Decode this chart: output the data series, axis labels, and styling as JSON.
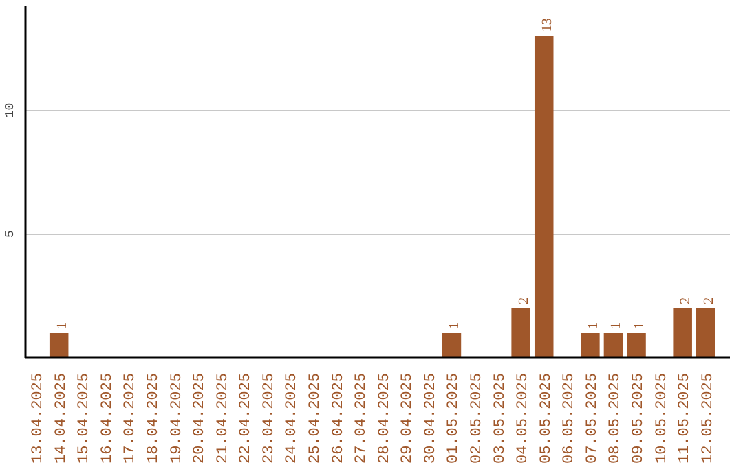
{
  "chart_data": {
    "type": "bar",
    "categories": [
      "13.04.2025",
      "14.04.2025",
      "15.04.2025",
      "16.04.2025",
      "17.04.2025",
      "18.04.2025",
      "19.04.2025",
      "20.04.2025",
      "21.04.2025",
      "22.04.2025",
      "23.04.2025",
      "24.04.2025",
      "25.04.2025",
      "26.04.2025",
      "27.04.2025",
      "28.04.2025",
      "29.04.2025",
      "30.04.2025",
      "01.05.2025",
      "02.05.2025",
      "03.05.2025",
      "04.05.2025",
      "05.05.2025",
      "06.05.2025",
      "07.05.2025",
      "08.05.2025",
      "09.05.2025",
      "10.05.2025",
      "11.05.2025",
      "12.05.2025"
    ],
    "values": [
      0,
      1,
      0,
      0,
      0,
      0,
      0,
      0,
      0,
      0,
      0,
      0,
      0,
      0,
      0,
      0,
      0,
      0,
      1,
      0,
      0,
      2,
      13,
      0,
      1,
      1,
      1,
      0,
      2,
      2
    ],
    "value_labels": [
      null,
      "1",
      null,
      null,
      null,
      null,
      null,
      null,
      null,
      null,
      null,
      null,
      null,
      null,
      null,
      null,
      null,
      null,
      "1",
      null,
      null,
      "2",
      "13",
      null,
      "1",
      "1",
      "1",
      null,
      "2",
      "2"
    ],
    "color": "#a0572a",
    "ylim": [
      0,
      14.2
    ],
    "yticks": [
      5,
      10
    ],
    "grid": "y"
  }
}
